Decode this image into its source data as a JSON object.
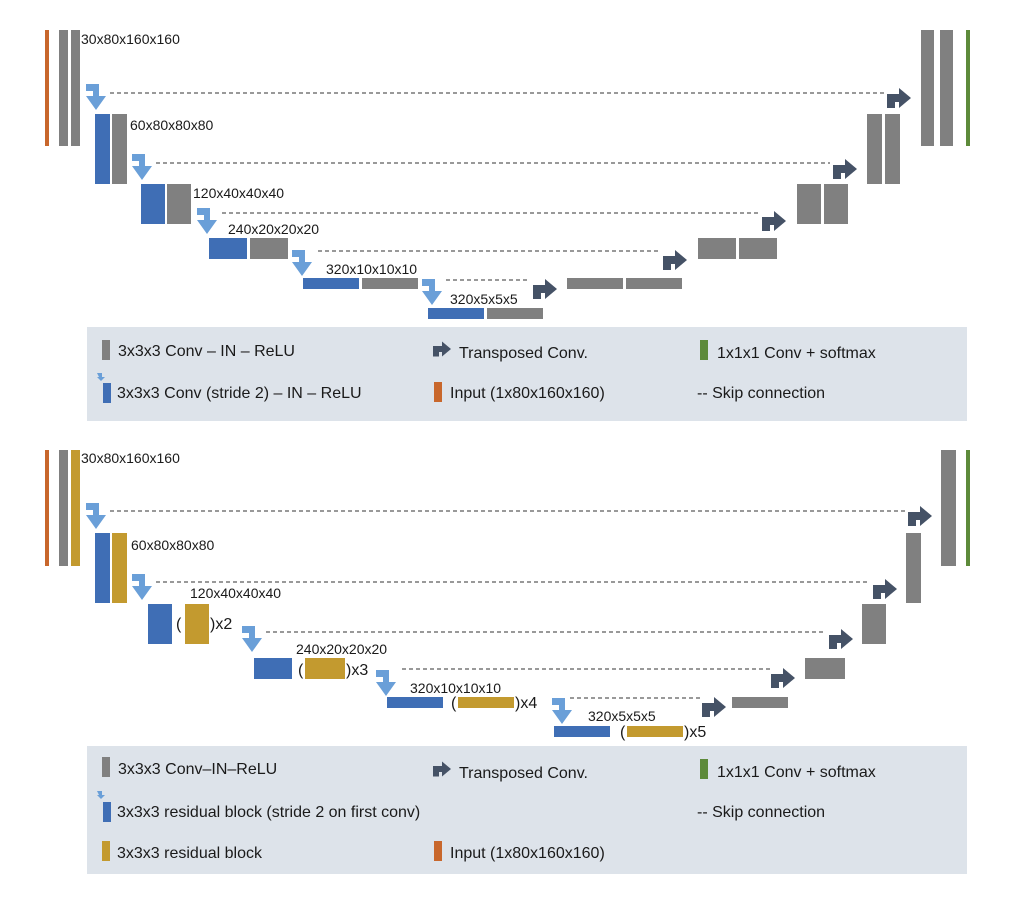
{
  "colors": {
    "conv": "#808080",
    "down": "#3f6eb5",
    "arrow_down": "#6a9fd8",
    "up_arrow": "#455266",
    "input": "#c8672c",
    "output": "#5d8a3a",
    "residual": "#c39a2f",
    "legend_bg": "#dde3ea"
  },
  "top": {
    "labels": {
      "l1": "30x80x160x160",
      "l2": "60x80x80x80",
      "l3": "120x40x40x40",
      "l4": "240x20x20x20",
      "l5": "320x10x10x10",
      "l6": "320x5x5x5"
    },
    "legend": {
      "conv": "3x3x3 Conv – IN – ReLU",
      "down": "3x3x3 Conv (stride 2) – IN – ReLU",
      "transposed": "Transposed Conv.",
      "input": "Input (1x80x160x160)",
      "softmax": "1x1x1 Conv + softmax",
      "skip": "-- Skip connection"
    }
  },
  "bottom": {
    "labels": {
      "l1": "30x80x160x160",
      "l2": "60x80x80x80",
      "l3": "120x40x40x40",
      "l4": "240x20x20x20",
      "l5": "320x10x10x10",
      "l6": "320x5x5x5"
    },
    "mult": {
      "m3": ")x2",
      "m4": ")x3",
      "m5": ")x4",
      "m6": ")x5",
      "paren": "("
    },
    "legend": {
      "conv": "3x3x3 Conv–IN–ReLU",
      "down": "3x3x3 residual block (stride 2 on first conv)",
      "residual": "3x3x3 residual block",
      "transposed": "Transposed Conv.",
      "input": "Input (1x80x160x160)",
      "softmax": "1x1x1 Conv + softmax",
      "skip": "-- Skip connection"
    }
  }
}
